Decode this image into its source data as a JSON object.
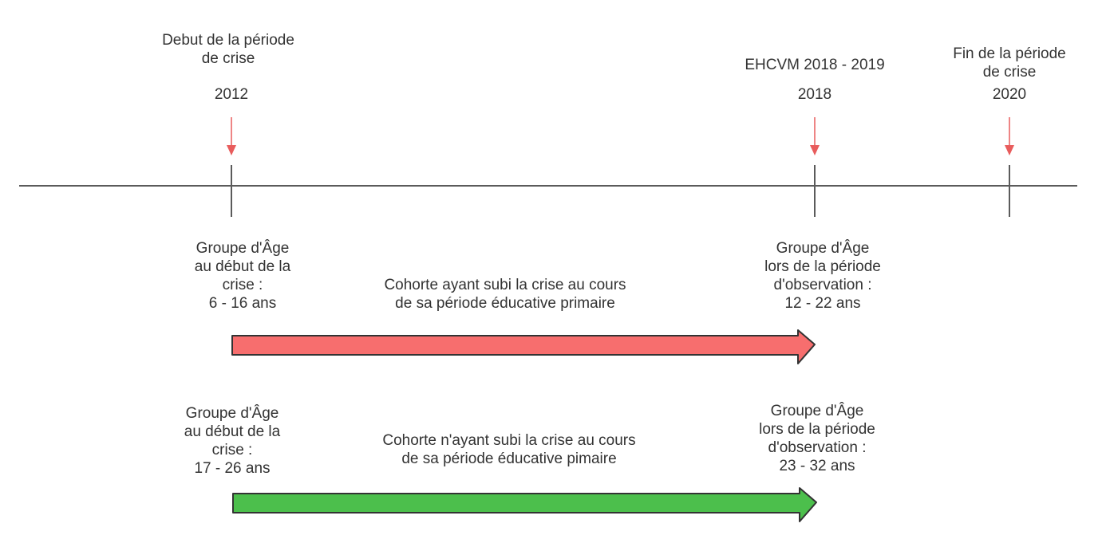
{
  "colors": {
    "timeline": "#5b5b5b",
    "marker_arrow": "#e85c5c",
    "cohort_crisis": "#f76e6e",
    "cohort_no_crisis": "#4cbf4c",
    "arrow_outline": "#333333",
    "text": "#333333"
  },
  "milestones": {
    "start": {
      "label": "Debut de la période\nde crise",
      "year": "2012"
    },
    "survey": {
      "label": "EHCVM 2018 - 2019",
      "year": "2018"
    },
    "end": {
      "label": "Fin de la période\nde crise",
      "year": "2020"
    }
  },
  "cohorts": {
    "crisis": {
      "start_group": "Groupe d'Âge\nau début de la\ncrise :\n6 - 16 ans",
      "description": "Cohorte ayant subi la crise au cours\nde sa période éducative primaire",
      "end_group": "Groupe d'Âge\nlors de la période\nd'observation :\n12 - 22 ans"
    },
    "no_crisis": {
      "start_group": "Groupe d'Âge\nau début de la\ncrise :\n17 - 26 ans",
      "description": "Cohorte n'ayant subi la crise au cours\nde sa période éducative pimaire",
      "end_group": "Groupe d'Âge\nlors de la période\nd'observation :\n23 - 32 ans"
    }
  }
}
